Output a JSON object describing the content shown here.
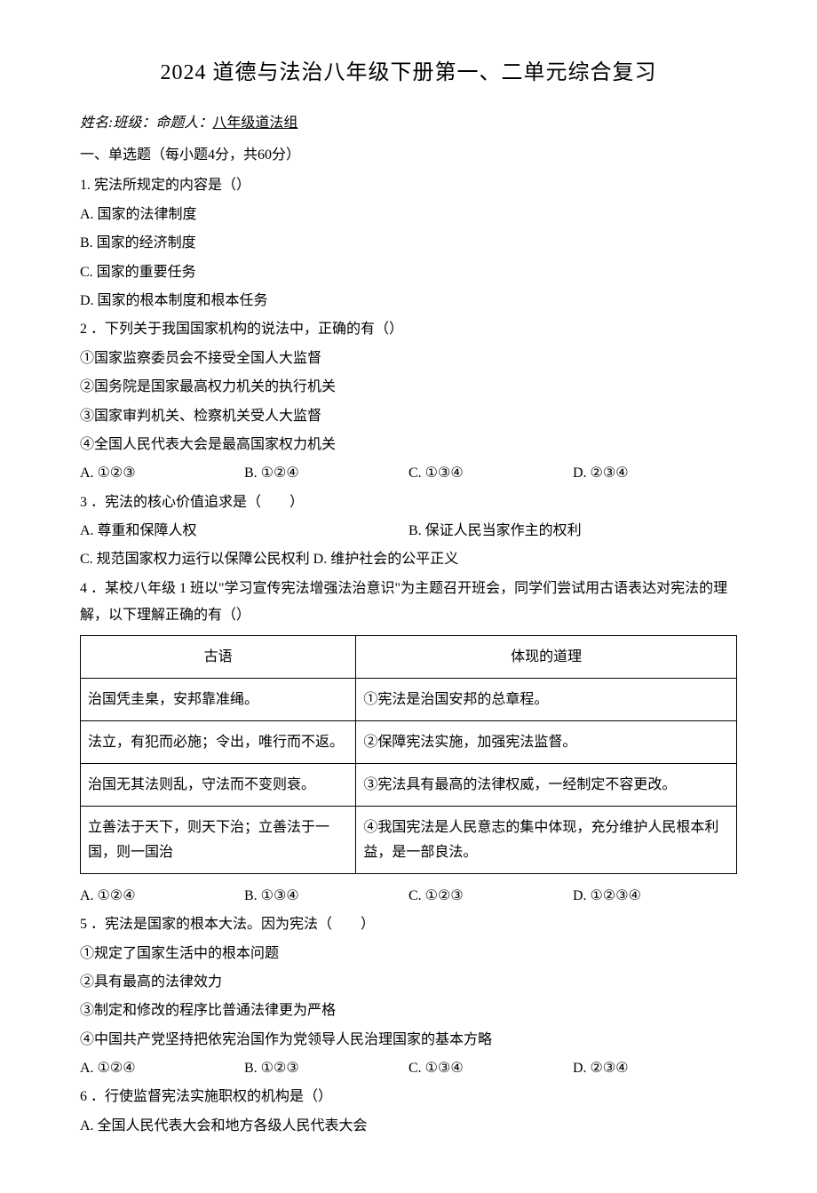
{
  "title": "2024 道德与法治八年级下册第一、二单元综合复习",
  "meta": {
    "prefix": "姓名:班级：命题人：",
    "author": "八年级道法组"
  },
  "section1_header": "一、单选题（每小题4分，共60分）",
  "q1": {
    "stem": "1. 宪法所规定的内容是（）",
    "a": "A. 国家的法律制度",
    "b": "B. 国家的经济制度",
    "c": "C. 国家的重要任务",
    "d": "D. 国家的根本制度和根本任务"
  },
  "q2": {
    "stem": "2 ．下列关于我国国家机构的说法中，正确的有（）",
    "s1": "①国家监察委员会不接受全国人大监督",
    "s2": "②国务院是国家最高权力机关的执行机关",
    "s3": "③国家审判机关、检察机关受人大监督",
    "s4": "④全国人民代表大会是最高国家权力机关",
    "a": "A. ①②③",
    "b": "B. ①②④",
    "c": "C. ①③④",
    "d": "D. ②③④"
  },
  "q3": {
    "stem": "3 ．宪法的核心价值追求是（　　）",
    "a": "A. 尊重和保障人权",
    "b": "B. 保证人民当家作主的权利",
    "c": "C. 规范国家权力运行以保障公民权利 D. 维护社会的公平正义"
  },
  "q4": {
    "stem": "4 ．某校八年级 1 班以\"学习宣传宪法增强法治意识\"为主题召开班会，同学们尝试用古语表达对宪法的理解，以下理解正确的有（）",
    "table": {
      "header_left": "古语",
      "header_right": "体现的道理",
      "rows": [
        {
          "left": "治国凭圭臬，安邦靠准绳。",
          "right": "①宪法是治国安邦的总章程。"
        },
        {
          "left": "法立，有犯而必施；令出，唯行而不返。",
          "right": "②保障宪法实施，加强宪法监督。"
        },
        {
          "left": "治国无其法则乱，守法而不变则衰。",
          "right": "③宪法具有最高的法律权威，一经制定不容更改。"
        },
        {
          "left": "立善法于天下，则天下治；立善法于一国，则一国治",
          "right": "④我国宪法是人民意志的集中体现，充分维护人民根本利益，是一部良法。"
        }
      ]
    },
    "a": "A. ①②④",
    "b": "B. ①③④",
    "c": "C. ①②③",
    "d": "D. ①②③④"
  },
  "q5": {
    "stem": "5 ．宪法是国家的根本大法。因为宪法（　　）",
    "s1": "①规定了国家生活中的根本问题",
    "s2": "②具有最高的法律效力",
    "s3": "③制定和修改的程序比普通法律更为严格",
    "s4": "④中国共产党坚持把依宪治国作为党领导人民治理国家的基本方略",
    "a": "A. ①②④",
    "b": "B. ①②③",
    "c": "C. ①③④",
    "d": "D. ②③④"
  },
  "q6": {
    "stem": "6 ．行使监督宪法实施职权的机构是（）",
    "a": "A. 全国人民代表大会和地方各级人民代表大会"
  }
}
